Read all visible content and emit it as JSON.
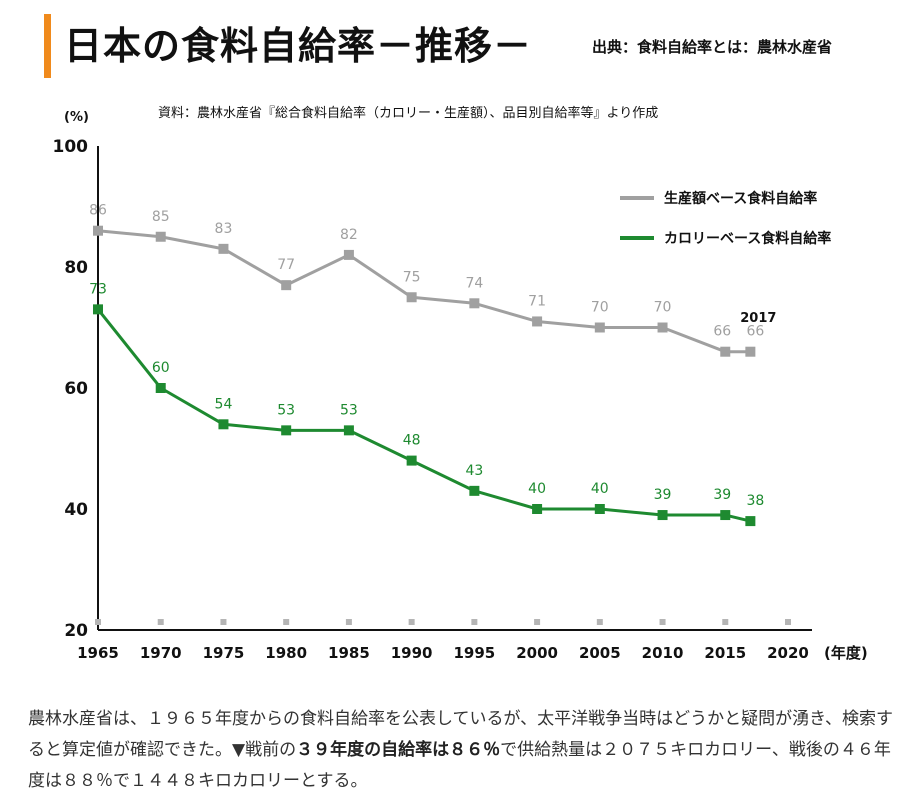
{
  "header": {
    "title": "日本の食料自給率－推移－",
    "source": "出典：食料自給率とは：農林水産省"
  },
  "chart_data": {
    "type": "line",
    "source_note": "資料：農林水産省『総合食料自給率（カロリー・生産額）、品目別自給率等』より作成",
    "ylabel": "(%)",
    "xlabel": "(年度)",
    "ylim": [
      20,
      100
    ],
    "xlim": [
      1965,
      2020
    ],
    "y_ticks": [
      "20",
      "40",
      "60",
      "80",
      "100"
    ],
    "x_ticks": [
      "1965",
      "1970",
      "1975",
      "1980",
      "1985",
      "1990",
      "1995",
      "2000",
      "2005",
      "2010",
      "2015",
      "2020"
    ],
    "legend_position": "top-right",
    "annotation": "2017",
    "series": [
      {
        "name": "生産額ベース食料自給率",
        "color": "#a0a0a0",
        "x": [
          1965,
          1970,
          1975,
          1980,
          1985,
          1990,
          1995,
          2000,
          2005,
          2010,
          2015,
          2017
        ],
        "values": [
          86,
          85,
          83,
          77,
          82,
          75,
          74,
          71,
          70,
          70,
          66,
          66
        ]
      },
      {
        "name": "カロリーベース食料自給率",
        "color": "#1e8a30",
        "x": [
          1965,
          1970,
          1975,
          1980,
          1985,
          1990,
          1995,
          2000,
          2005,
          2010,
          2015,
          2017
        ],
        "values": [
          73,
          60,
          54,
          53,
          53,
          48,
          43,
          40,
          40,
          39,
          39,
          38
        ]
      }
    ]
  },
  "body": {
    "part1": "農林水産省は、１９６５年度からの食料自給率を公表しているが、太平洋戦争当時はどうかと疑問が湧き、検索すると算定値が確認できた。▼戦前の",
    "highlight": "３９年度の自給率は８６％",
    "part2": "で供給熱量は２０７５キロカロリー、戦後の４６年度は８８％で１４４８キロカロリーとする。"
  }
}
